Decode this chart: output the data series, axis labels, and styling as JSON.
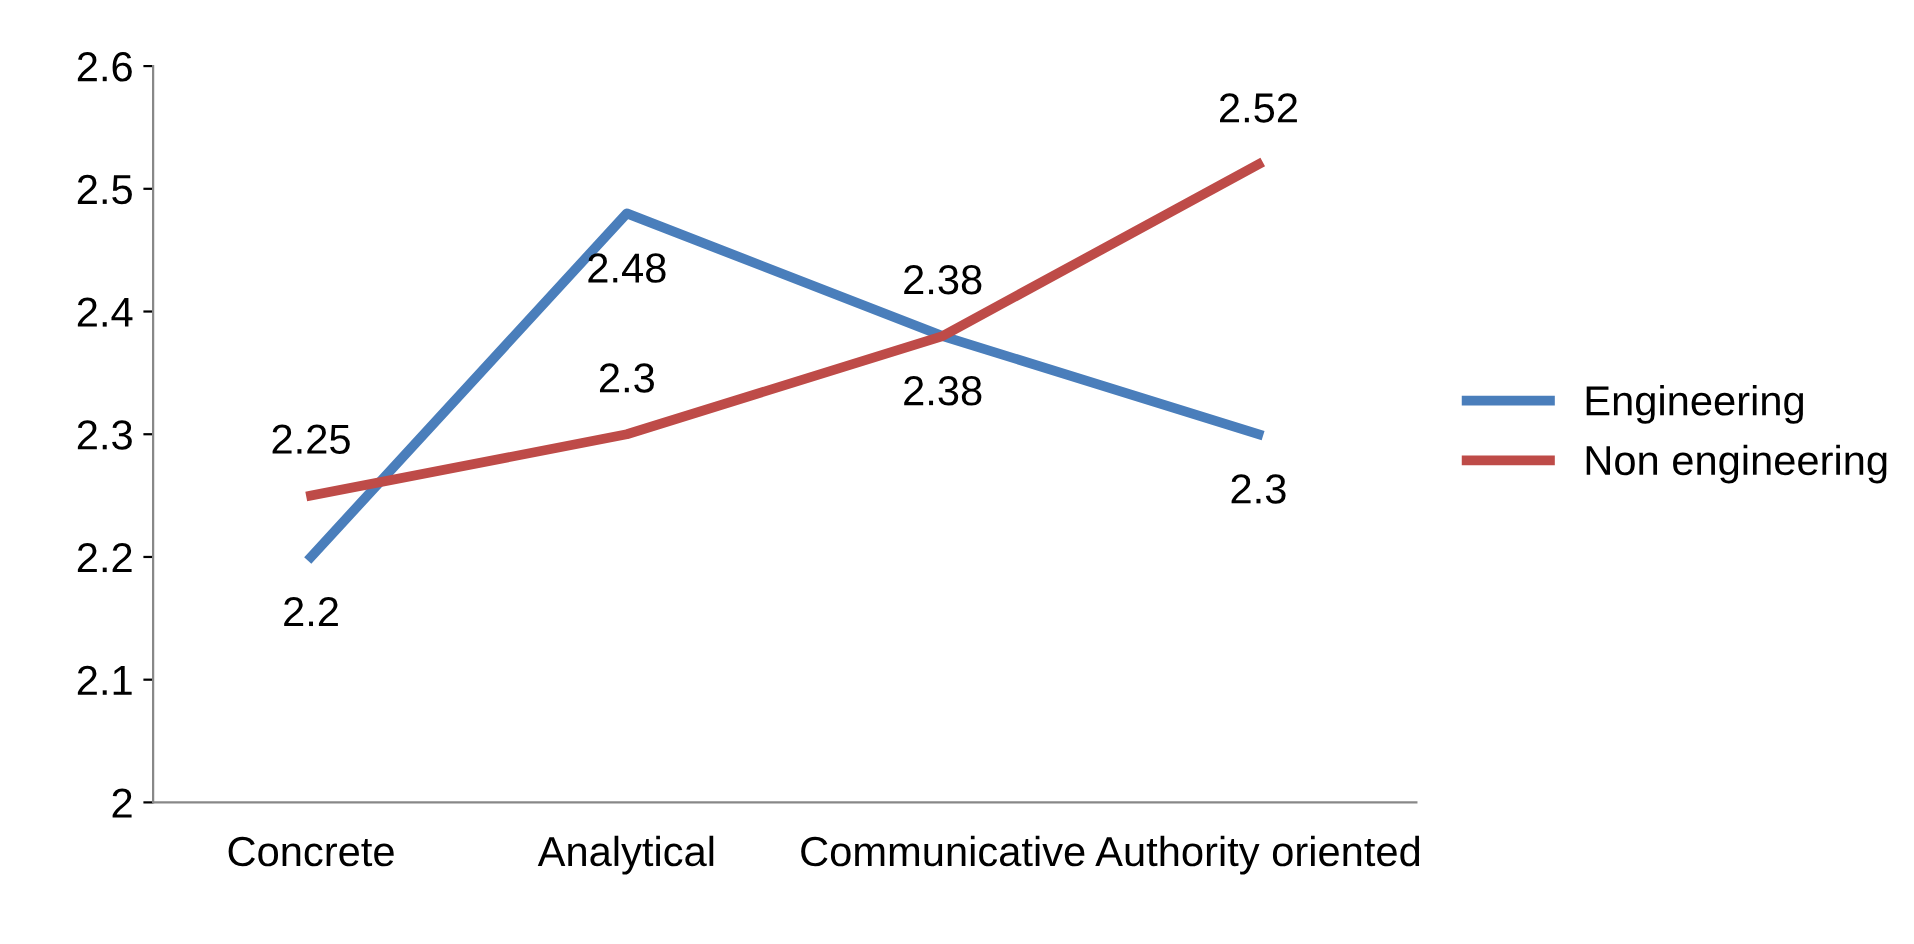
{
  "chart_data": {
    "type": "line",
    "categories": [
      "Concrete",
      "Analytical",
      "Communicative",
      "Authority oriented"
    ],
    "series": [
      {
        "name": "Engineering",
        "color": "#4a7ebb",
        "values": [
          2.2,
          2.48,
          2.38,
          2.3
        ]
      },
      {
        "name": "Non engineering",
        "color": "#be4b48",
        "values": [
          2.25,
          2.3,
          2.38,
          2.52
        ]
      }
    ],
    "ylim": [
      2,
      2.6
    ],
    "yticks": [
      2,
      2.1,
      2.2,
      2.3,
      2.4,
      2.5,
      2.6
    ],
    "data_labels": true,
    "legend": "right",
    "grid": false,
    "marker": "none",
    "line_style": "solid"
  }
}
